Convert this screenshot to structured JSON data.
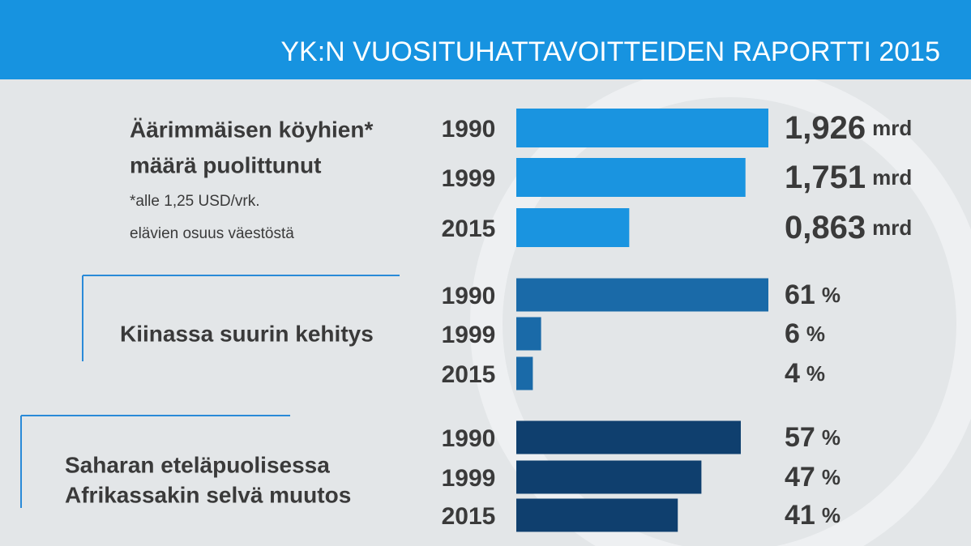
{
  "header": {
    "title": "YK:N VUOSITUHATTAVOITTEIDEN RAPORTTI 2015"
  },
  "chart_data": [
    {
      "type": "bar",
      "title": [
        "Äärimmäisen köyhien*",
        "määrä puolittunut"
      ],
      "note": [
        "*alle 1,25 USD/vrk.",
        "elävien osuus väestöstä"
      ],
      "categories": [
        "1990",
        "1999",
        "2015"
      ],
      "values": [
        1.926,
        1.751,
        0.863
      ],
      "value_labels": [
        "1,926",
        "1,751",
        "0,863"
      ],
      "unit": "mrd",
      "color": "#1a94e0",
      "xlim": [
        0,
        1.926
      ]
    },
    {
      "type": "bar",
      "title": [
        "Kiinassa suurin kehitys"
      ],
      "categories": [
        "1990",
        "1999",
        "2015"
      ],
      "values": [
        61,
        6,
        4
      ],
      "unit": "%",
      "color": "#1a6aa8",
      "xlim": [
        0,
        61
      ]
    },
    {
      "type": "bar",
      "title": [
        "Saharan eteläpuolisessa",
        "Afrikassakin selvä muutos"
      ],
      "categories": [
        "1990",
        "1999",
        "2015"
      ],
      "values": [
        57,
        47,
        41
      ],
      "unit": "%",
      "color": "#0f3f6e",
      "xlim": [
        0,
        64
      ]
    }
  ]
}
